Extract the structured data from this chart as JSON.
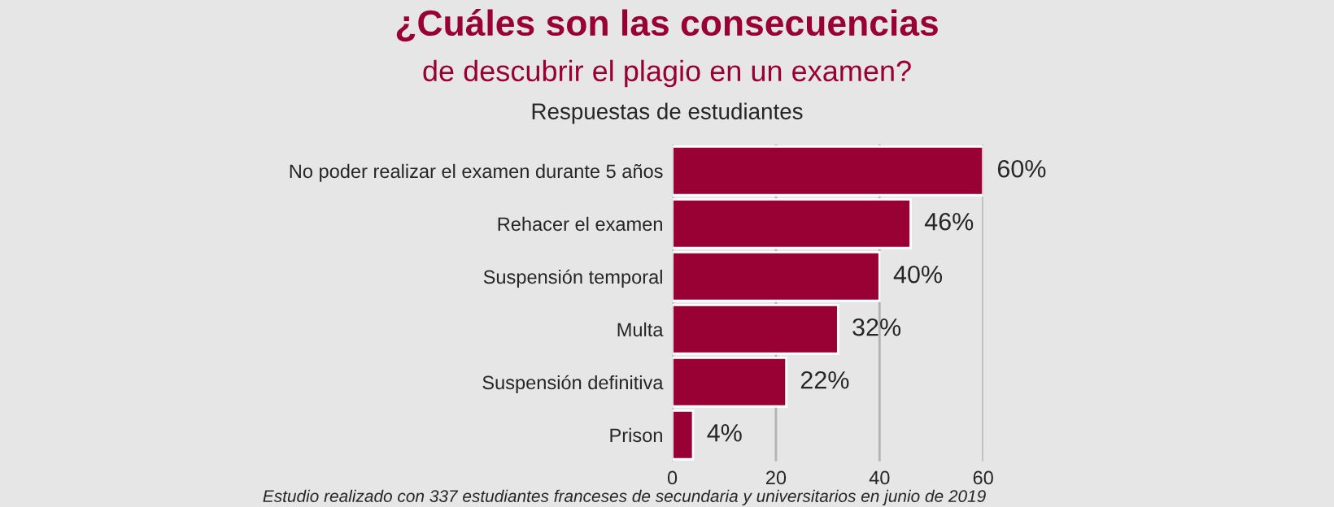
{
  "chart_data": {
    "type": "bar",
    "orientation": "horizontal",
    "title": "¿Cuáles son las consecuencias",
    "subtitle": "de descubrir el plagio en un examen?",
    "annotations": [
      "Respuestas de estudiantes",
      "Estudio realizado con 337 estudiantes franceses de secundaria y universitarios en junio de 2019"
    ],
    "categories": [
      "No poder realizar el examen durante 5 años",
      "Rehacer el examen",
      "Suspensión temporal",
      "Multa",
      "Suspensión definitiva",
      "Prison"
    ],
    "values": [
      60,
      46,
      40,
      32,
      22,
      4
    ],
    "color": "#990033",
    "value_labels": [
      "60%",
      "46%",
      "40%",
      "32%",
      "22%",
      "4%"
    ],
    "xlim": [
      0,
      60
    ],
    "xticks": [
      0,
      20,
      40,
      60
    ],
    "grid": "x",
    "legend": false
  }
}
